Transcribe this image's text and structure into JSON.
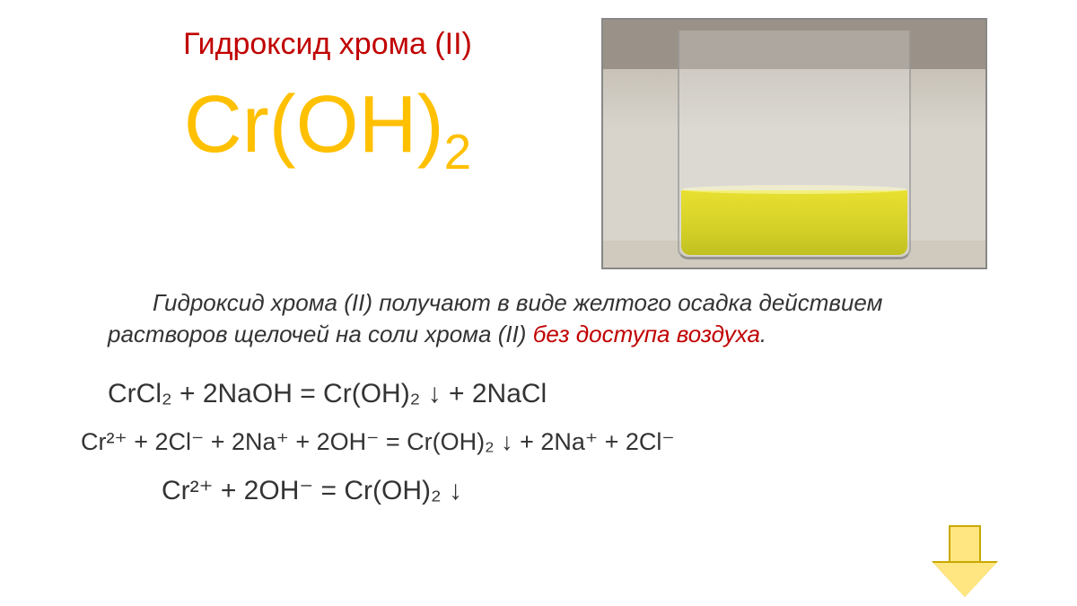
{
  "title": "Гидроксид хрома (II)",
  "formula_main": "Cr(OH)",
  "formula_main_sub": "2",
  "description_part1": "Гидроксид хрома (II) получают в виде желтого осадка действием  растворов  щелочей на соли хрома (II) ",
  "description_red": "без доступа воздуха",
  "description_part2": ".",
  "equations": {
    "eq1": "CrCl₂  +  2NaOH  =  Cr(OH)₂ ↓ +  2NaCl",
    "eq2": "Cr²⁺ +  2Cl⁻  +  2Na⁺  +  2OH⁻  = Cr(OH)₂ ↓ +  2Na⁺ + 2Cl⁻",
    "eq3": "Cr²⁺  +  2OH⁻  =  Cr(OH)₂ ↓"
  },
  "colors": {
    "title": "#c00000",
    "formula": "#ffc000",
    "liquid": "#d4d028",
    "arrow_fill": "#ffe680",
    "arrow_border": "#c9a800"
  }
}
